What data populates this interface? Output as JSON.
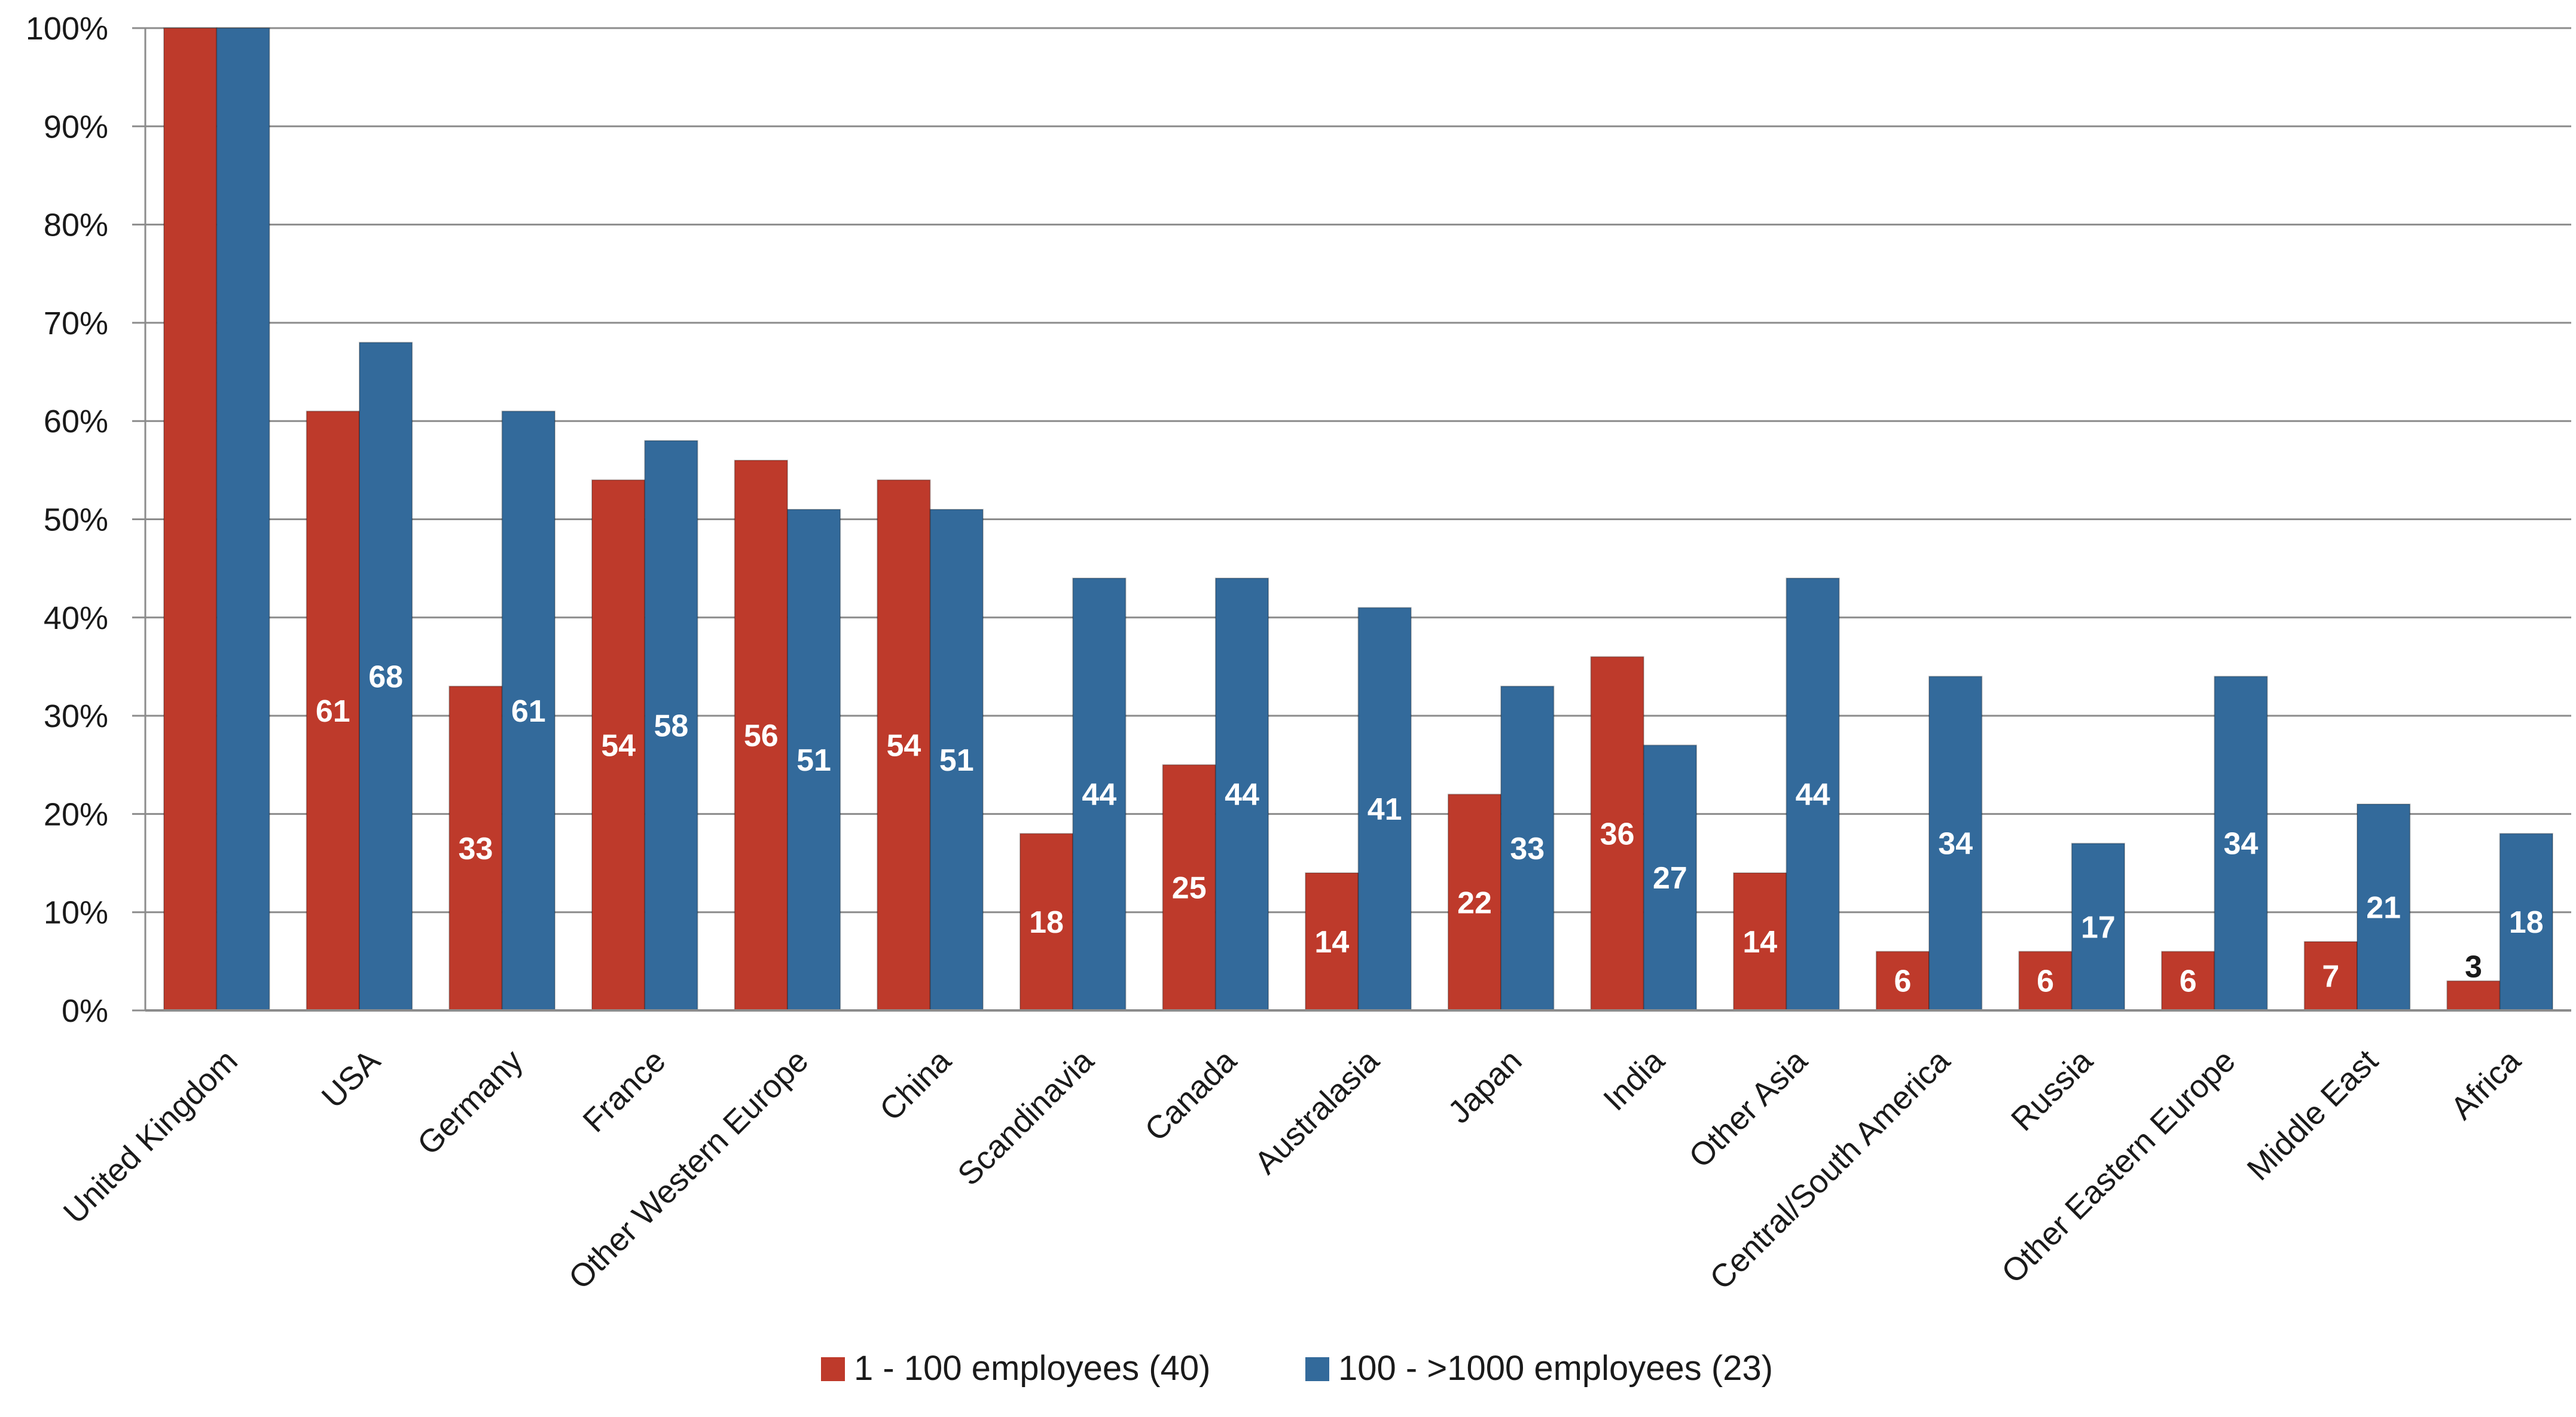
{
  "chart_data": {
    "type": "bar",
    "categories": [
      "United Kingdom",
      "USA",
      "Germany",
      "France",
      "Other Western Europe",
      "China",
      "Scandinavia",
      "Canada",
      "Australasia",
      "Japan",
      "India",
      "Other Asia",
      "Central/South America",
      "Russia",
      "Other Eastern Europe",
      "Middle East",
      "Africa"
    ],
    "series": [
      {
        "name": "1 - 100 employees (40)",
        "color": "#be3a2b",
        "values": [
          100,
          61,
          33,
          54,
          56,
          54,
          18,
          25,
          14,
          22,
          36,
          14,
          6,
          6,
          6,
          7,
          3
        ],
        "data_labels": [
          "",
          "61",
          "33",
          "54",
          "56",
          "54",
          "18",
          "25",
          "14",
          "22",
          "36",
          "14",
          "6",
          "6",
          "6",
          "7",
          "3"
        ]
      },
      {
        "name": "100 - >1000 employees (23)",
        "color": "#336a9b",
        "values": [
          100,
          68,
          61,
          58,
          51,
          51,
          44,
          44,
          41,
          33,
          27,
          44,
          34,
          17,
          34,
          21,
          18
        ],
        "data_labels": [
          "",
          "68",
          "61",
          "58",
          "51",
          "51",
          "44",
          "44",
          "41",
          "33",
          "27",
          "44",
          "34",
          "17",
          "34",
          "21",
          "18"
        ]
      }
    ],
    "y_ticks": [
      "0%",
      "10%",
      "20%",
      "30%",
      "40%",
      "50%",
      "60%",
      "70%",
      "80%",
      "90%",
      "100%"
    ],
    "ylim": [
      0,
      100
    ],
    "grid": true,
    "legend_position": "bottom-center",
    "title": "",
    "xlabel": "",
    "ylabel": ""
  }
}
